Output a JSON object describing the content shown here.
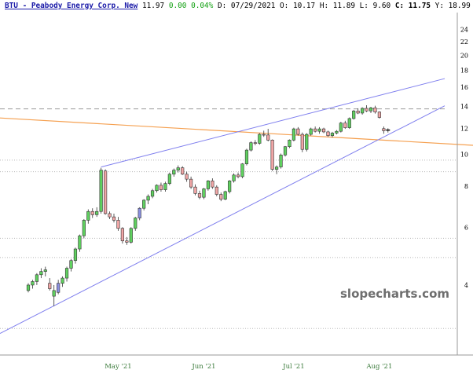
{
  "header": {
    "title": "BTU - Peabody Energy Corp. New",
    "last": "11.97",
    "change": "0.00",
    "change_pct": "0.04%",
    "date": "D: 07/29/2021",
    "open": "O: 10.17",
    "high": "H: 11.89",
    "low": "L:   9.60",
    "close_label": "C:",
    "close": "11.75",
    "ymax_label": "Y: 18.99"
  },
  "watermark": "slopecharts.com",
  "colors": {
    "up": "#5fd15f",
    "down": "#f0a6a6",
    "neutral": "#8a8fe0",
    "channel": "#7f7fee",
    "orange_line": "#f5a050",
    "grid": "#b8b8b8",
    "axis_text": "#000000",
    "month_text": "#3a7a3a"
  },
  "chart_data": {
    "type": "candlestick",
    "ticker": "BTU",
    "y_scale": "log",
    "ylim": [
      2.45,
      27
    ],
    "y_ticks": [
      4,
      6,
      8,
      10,
      12,
      14,
      16,
      18,
      20,
      22,
      24
    ],
    "x_ticks": [
      {
        "label": "May '21",
        "index": 21
      },
      {
        "label": "Jun '21",
        "index": 41
      },
      {
        "label": "Jul '21",
        "index": 62
      },
      {
        "label": "Aug '21",
        "index": 82
      }
    ],
    "resistance_level": 13.75,
    "dotted_levels": [
      9.6,
      8.85,
      5.55,
      4.85,
      2.95
    ],
    "candles": [
      [
        3.85,
        4.05,
        3.8,
        4.0
      ],
      [
        4.0,
        4.15,
        3.9,
        4.1
      ],
      [
        4.1,
        4.35,
        4.0,
        4.3
      ],
      [
        4.3,
        4.5,
        4.2,
        4.4
      ],
      [
        4.4,
        4.55,
        4.25,
        4.45
      ],
      [
        4.05,
        4.2,
        3.85,
        3.9
      ],
      [
        3.7,
        4.0,
        3.45,
        3.85
      ],
      [
        3.8,
        4.15,
        3.75,
        4.05
      ],
      [
        4.05,
        4.25,
        3.95,
        4.2
      ],
      [
        4.2,
        4.55,
        4.1,
        4.5
      ],
      [
        4.5,
        4.8,
        4.4,
        4.75
      ],
      [
        4.75,
        5.2,
        4.65,
        5.15
      ],
      [
        5.15,
        5.7,
        5.05,
        5.65
      ],
      [
        5.65,
        6.35,
        5.55,
        6.3
      ],
      [
        6.3,
        6.8,
        6.15,
        6.7
      ],
      [
        6.7,
        6.85,
        6.4,
        6.55
      ],
      [
        6.55,
        6.9,
        6.45,
        6.7
      ],
      [
        6.7,
        9.1,
        6.6,
        8.95
      ],
      [
        8.9,
        9.0,
        6.55,
        6.6
      ],
      [
        6.6,
        6.7,
        6.35,
        6.45
      ],
      [
        6.45,
        6.6,
        6.2,
        6.3
      ],
      [
        6.3,
        6.45,
        5.85,
        5.95
      ],
      [
        5.95,
        6.0,
        5.35,
        5.45
      ],
      [
        5.45,
        5.6,
        5.3,
        5.4
      ],
      [
        5.4,
        6.0,
        5.35,
        5.95
      ],
      [
        5.95,
        6.45,
        5.85,
        6.4
      ],
      [
        6.4,
        6.9,
        6.3,
        6.85
      ],
      [
        6.85,
        7.3,
        6.75,
        7.25
      ],
      [
        7.25,
        7.55,
        7.05,
        7.45
      ],
      [
        7.45,
        7.85,
        7.35,
        7.75
      ],
      [
        7.75,
        8.1,
        7.65,
        8.05
      ],
      [
        8.05,
        8.2,
        7.7,
        7.8
      ],
      [
        7.8,
        8.25,
        7.7,
        8.15
      ],
      [
        8.15,
        8.8,
        8.05,
        8.7
      ],
      [
        8.7,
        9.05,
        8.55,
        8.95
      ],
      [
        8.95,
        9.25,
        8.8,
        9.1
      ],
      [
        9.1,
        9.2,
        8.65,
        8.7
      ],
      [
        8.7,
        8.85,
        8.25,
        8.4
      ],
      [
        8.4,
        8.55,
        7.85,
        7.95
      ],
      [
        7.95,
        8.1,
        7.5,
        7.6
      ],
      [
        7.6,
        7.75,
        7.3,
        7.4
      ],
      [
        7.4,
        7.9,
        7.3,
        7.85
      ],
      [
        7.85,
        8.35,
        7.75,
        8.3
      ],
      [
        8.3,
        8.45,
        7.85,
        7.95
      ],
      [
        7.95,
        8.05,
        7.45,
        7.55
      ],
      [
        7.55,
        7.65,
        7.2,
        7.3
      ],
      [
        7.3,
        7.75,
        7.25,
        7.7
      ],
      [
        7.7,
        8.35,
        7.6,
        8.3
      ],
      [
        8.3,
        8.75,
        8.2,
        8.65
      ],
      [
        8.65,
        8.8,
        8.45,
        8.55
      ],
      [
        8.55,
        9.4,
        8.45,
        9.35
      ],
      [
        9.35,
        10.4,
        9.25,
        10.3
      ],
      [
        10.3,
        10.95,
        10.2,
        10.85
      ],
      [
        10.85,
        11.05,
        10.65,
        10.8
      ],
      [
        10.8,
        11.6,
        10.7,
        11.5
      ],
      [
        11.5,
        11.8,
        11.3,
        11.45
      ],
      [
        11.45,
        11.95,
        10.95,
        11.05
      ],
      [
        11.05,
        11.1,
        8.9,
        9.0
      ],
      [
        9.0,
        9.25,
        8.7,
        9.15
      ],
      [
        9.15,
        10.05,
        9.05,
        9.95
      ],
      [
        9.95,
        10.6,
        9.85,
        10.55
      ],
      [
        10.55,
        11.1,
        10.45,
        11.05
      ],
      [
        11.05,
        12.05,
        10.95,
        11.95
      ],
      [
        11.95,
        12.1,
        11.4,
        11.5
      ],
      [
        11.5,
        11.65,
        10.15,
        10.35
      ],
      [
        10.35,
        11.6,
        10.2,
        11.5
      ],
      [
        11.5,
        12.05,
        11.4,
        11.95
      ],
      [
        11.95,
        12.15,
        11.65,
        11.75
      ],
      [
        11.75,
        12.1,
        11.55,
        11.95
      ],
      [
        11.95,
        12.05,
        11.6,
        11.7
      ],
      [
        11.7,
        11.8,
        11.3,
        11.4
      ],
      [
        11.4,
        11.7,
        11.25,
        11.6
      ],
      [
        11.6,
        11.85,
        11.5,
        11.75
      ],
      [
        11.75,
        12.55,
        11.65,
        12.45
      ],
      [
        12.45,
        12.65,
        11.95,
        12.05
      ],
      [
        12.05,
        12.95,
        11.95,
        12.85
      ],
      [
        12.85,
        13.65,
        12.75,
        13.55
      ],
      [
        13.55,
        13.8,
        13.25,
        13.35
      ],
      [
        13.35,
        13.9,
        13.2,
        13.8
      ],
      [
        13.8,
        14.1,
        13.45,
        13.55
      ],
      [
        13.55,
        13.95,
        13.35,
        13.85
      ],
      [
        13.85,
        14.05,
        13.3,
        13.45
      ],
      [
        13.45,
        13.5,
        12.85,
        12.95
      ],
      [
        11.97,
        12.15,
        11.55,
        11.8
      ],
      [
        11.8,
        12.0,
        11.65,
        11.85
      ]
    ],
    "neutral_candles": [
      7,
      26
    ]
  }
}
